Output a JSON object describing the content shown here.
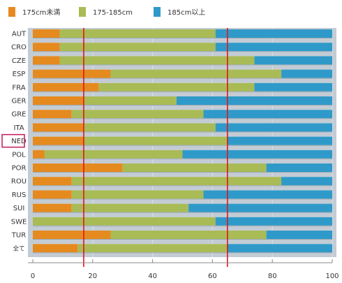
{
  "chart_data": {
    "type": "bar",
    "stacked": true,
    "orientation": "horizontal",
    "percent": true,
    "categories": [
      "AUT",
      "CRO",
      "CZE",
      "ESP",
      "FRA",
      "GER",
      "GRE",
      "ITA",
      "NED",
      "POL",
      "POR",
      "ROU",
      "RUS",
      "SUI",
      "SWE",
      "TUR",
      "全て"
    ],
    "series": [
      {
        "name": "175cm未満",
        "color": "#e58a1e",
        "values": [
          9,
          9,
          9,
          26,
          22,
          17,
          13,
          17,
          17,
          4,
          30,
          13,
          13,
          13,
          0,
          26,
          15
        ]
      },
      {
        "name": "175-185cm",
        "color": "#a9bb55",
        "values": [
          52,
          52,
          65,
          57,
          52,
          31,
          44,
          44,
          48,
          46,
          48,
          70,
          44,
          39,
          61,
          52,
          50
        ]
      },
      {
        "name": "185cm以上",
        "color": "#2f9ac9",
        "values": [
          39,
          39,
          26,
          17,
          26,
          52,
          43,
          39,
          35,
          50,
          22,
          17,
          43,
          48,
          39,
          22,
          35
        ]
      }
    ],
    "xlim": [
      0,
      100
    ],
    "xticks": [
      0,
      20,
      40,
      60,
      80,
      100
    ],
    "legend": "top",
    "highlighted_category": "NED",
    "reference_lines": [
      17,
      65
    ],
    "reference_line_color": "#e0151f",
    "grid": true
  }
}
